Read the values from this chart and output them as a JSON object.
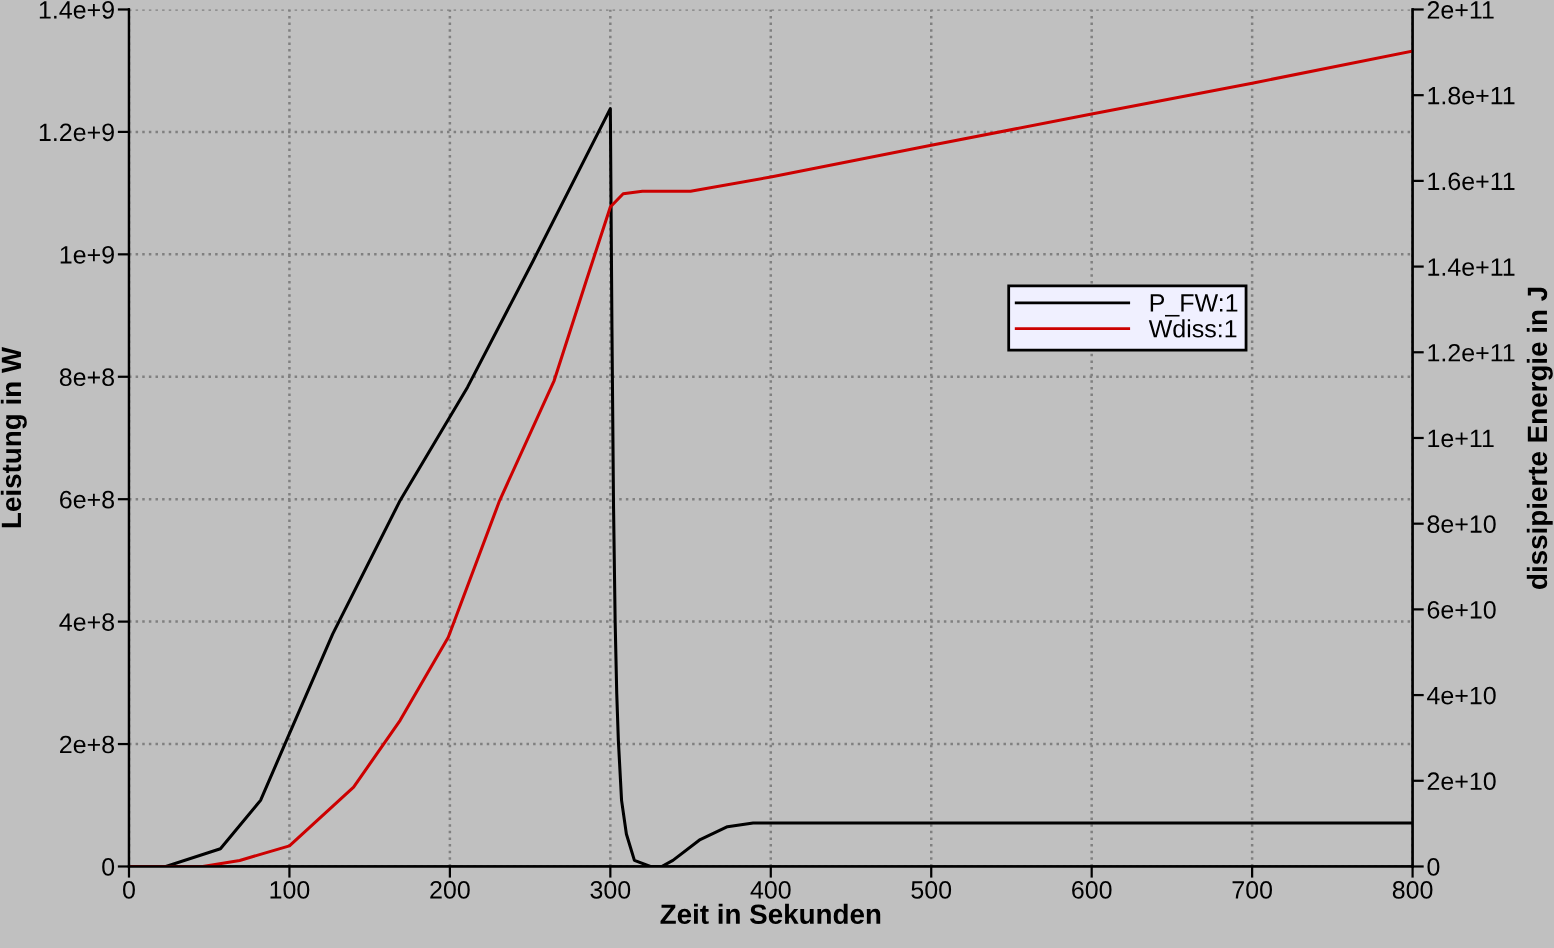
{
  "chart_data": {
    "type": "line",
    "xlabel": "Zeit in Sekunden",
    "ylabel": "Leistung in W",
    "y2label": "dissipierte Energie in J",
    "xlim": [
      0,
      800
    ],
    "xticks": [
      0,
      100,
      200,
      300,
      400,
      500,
      600,
      700,
      800
    ],
    "ylim": [
      0,
      1400000000
    ],
    "yticks": [
      0,
      {
        "value": 200000000,
        "label": "2e+8"
      },
      {
        "value": 400000000,
        "label": "4e+8"
      },
      {
        "value": 600000000,
        "label": "6e+8"
      },
      {
        "value": 800000000,
        "label": "8e+8"
      },
      {
        "value": 1000000000,
        "label": "1e+9"
      },
      {
        "value": 1200000000,
        "label": "1.2e+9"
      },
      {
        "value": 1400000000,
        "label": "1.4e+9"
      }
    ],
    "y2lim": [
      0,
      200000000000
    ],
    "y2ticks": [
      0,
      {
        "value": 20000000000,
        "label": "2e+10"
      },
      {
        "value": 40000000000,
        "label": "4e+10"
      },
      {
        "value": 60000000000,
        "label": "6e+10"
      },
      {
        "value": 80000000000,
        "label": "8e+10"
      },
      {
        "value": 100000000000,
        "label": "1e+11"
      },
      {
        "value": 120000000000,
        "label": "1.2e+11"
      },
      {
        "value": 140000000000,
        "label": "1.4e+11"
      },
      {
        "value": 160000000000,
        "label": "1.6e+11"
      },
      {
        "value": 180000000000,
        "label": "1.8e+11"
      },
      {
        "value": 200000000000,
        "label": "2e+11"
      }
    ],
    "grid": true,
    "legend": "right",
    "marker": "none",
    "line_style": "solid",
    "series": [
      {
        "name": "P_FW:1",
        "color": "#000000",
        "x": [
          0,
          23,
          57,
          82,
          100,
          127,
          169,
          211,
          252,
          300,
          301,
          302,
          303,
          304,
          305,
          307,
          310,
          315,
          325,
          332,
          339,
          356,
          373,
          389,
          800
        ],
        "values": [
          0,
          0,
          29000000,
          108000000,
          217000000,
          380000000,
          598000000,
          783000000,
          990000000,
          1238000000,
          880000000,
          587000000,
          400000000,
          282000000,
          206000000,
          108000000,
          53000000,
          10000000,
          0,
          0,
          10000000,
          44000000,
          65000000,
          71000000,
          71000000
        ]
      },
      {
        "name": "Wdiss:1",
        "color": "#cc0000",
        "axis": "y2",
        "x": [
          0,
          46,
          69,
          100,
          140,
          169,
          199,
          231,
          265,
          285,
          300,
          308,
          320,
          350,
          400,
          500,
          600,
          700,
          800
        ],
        "values": [
          0,
          0,
          1400000000,
          4800000000,
          18500000000,
          34100000000,
          53500000000,
          85400000000,
          113400000000,
          136700000000,
          153900000000,
          157000000000,
          157600000000,
          157600000000,
          160900000000,
          168300000000,
          175600000000,
          182800000000,
          190300000000
        ]
      }
    ]
  }
}
